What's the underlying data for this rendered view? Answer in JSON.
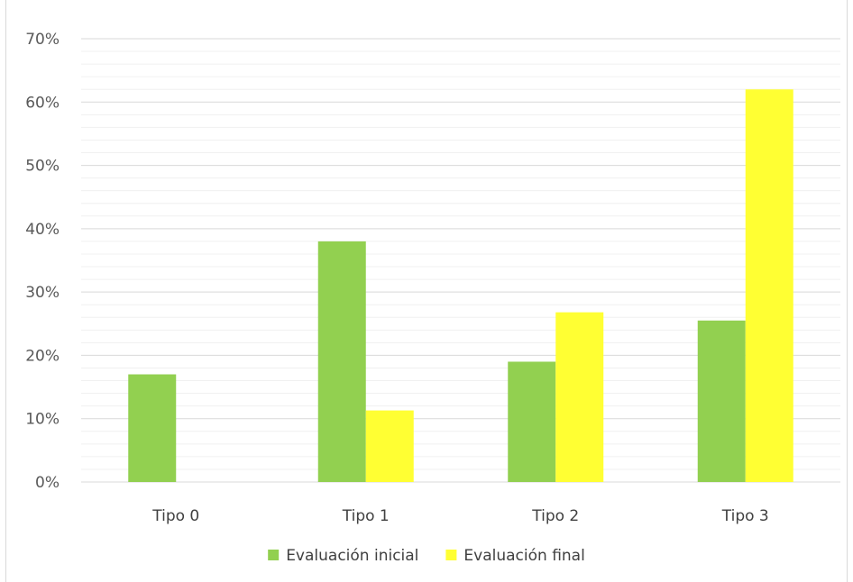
{
  "chart_data": {
    "type": "bar",
    "title": "",
    "categories": [
      "Tipo 0",
      "Tipo 1",
      "Tipo 2",
      "Tipo 3"
    ],
    "series": [
      {
        "name": "Evaluación inicial",
        "color": "#92d050",
        "values": [
          0.17,
          0.38,
          0.19,
          0.255
        ]
      },
      {
        "name": "Evaluación final",
        "color": "#ffff33",
        "values": [
          0.0,
          0.113,
          0.268,
          0.62
        ]
      }
    ],
    "ylim": [
      0,
      0.7
    ],
    "yticks": [
      0,
      0.1,
      0.2,
      0.3,
      0.4,
      0.5,
      0.6,
      0.7
    ],
    "ytick_labels": [
      "0%",
      "10%",
      "20%",
      "30%",
      "40%",
      "50%",
      "60%",
      "70%"
    ],
    "xlabel": "",
    "ylabel": "",
    "grid": true,
    "minor_grid": true,
    "legend_position": "bottom-center",
    "gridline_color": "#d9d9d9",
    "minor_gridline_color": "#f0f0f0"
  }
}
